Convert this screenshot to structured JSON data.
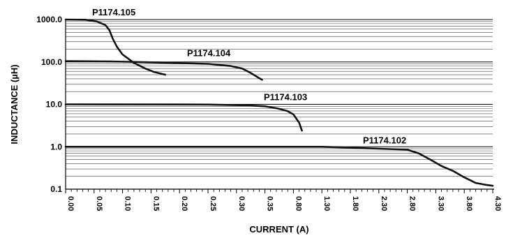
{
  "chart_data": {
    "type": "line",
    "title": "",
    "xlabel": "CURRENT (A)",
    "ylabel": "INDUCTANCE (µH)",
    "y_scale": "log",
    "ylim": [
      0.1,
      1000
    ],
    "grid": true,
    "y_tick_labels": [
      "1000.0",
      "100.0",
      "10.0",
      "1.0",
      "0.1"
    ],
    "x_tick_labels": [
      "0.00",
      "0.05",
      "0.10",
      "0.15",
      "0.20",
      "0.25",
      "0.30",
      "0.35",
      "0.80",
      "1.30",
      "1.80",
      "2.30",
      "2.80",
      "3.30",
      "3.80",
      "4.30"
    ],
    "series": [
      {
        "name": "P1174.105",
        "points": [
          [
            0.0,
            1000
          ],
          [
            0.035,
            990
          ],
          [
            0.055,
            900
          ],
          [
            0.07,
            740
          ],
          [
            0.077,
            560
          ],
          [
            0.083,
            350
          ],
          [
            0.09,
            230
          ],
          [
            0.1,
            150
          ],
          [
            0.12,
            95
          ],
          [
            0.14,
            70
          ],
          [
            0.155,
            58
          ],
          [
            0.175,
            50
          ]
        ]
      },
      {
        "name": "P1174.104",
        "points": [
          [
            0.0,
            105
          ],
          [
            0.08,
            103
          ],
          [
            0.15,
            98
          ],
          [
            0.2,
            94
          ],
          [
            0.25,
            90
          ],
          [
            0.29,
            80
          ],
          [
            0.31,
            70
          ],
          [
            0.325,
            55
          ],
          [
            0.338,
            43
          ],
          [
            0.345,
            38
          ]
        ]
      },
      {
        "name": "P1174.103",
        "points": [
          [
            0.0,
            10
          ],
          [
            0.25,
            9.9
          ],
          [
            0.32,
            9.5
          ],
          [
            0.35,
            9.0
          ],
          [
            0.55,
            8.0
          ],
          [
            0.7,
            7.0
          ],
          [
            0.8,
            5.8
          ],
          [
            0.9,
            3.7
          ],
          [
            0.95,
            2.4
          ]
        ]
      },
      {
        "name": "P1174.102",
        "points": [
          [
            0.0,
            1.0
          ],
          [
            1.3,
            1.0
          ],
          [
            1.8,
            0.95
          ],
          [
            2.3,
            0.9
          ],
          [
            2.8,
            0.85
          ],
          [
            3.0,
            0.7
          ],
          [
            3.2,
            0.5
          ],
          [
            3.4,
            0.35
          ],
          [
            3.6,
            0.27
          ],
          [
            3.8,
            0.19
          ],
          [
            4.0,
            0.14
          ],
          [
            4.2,
            0.125
          ],
          [
            4.3,
            0.12
          ]
        ]
      }
    ]
  }
}
